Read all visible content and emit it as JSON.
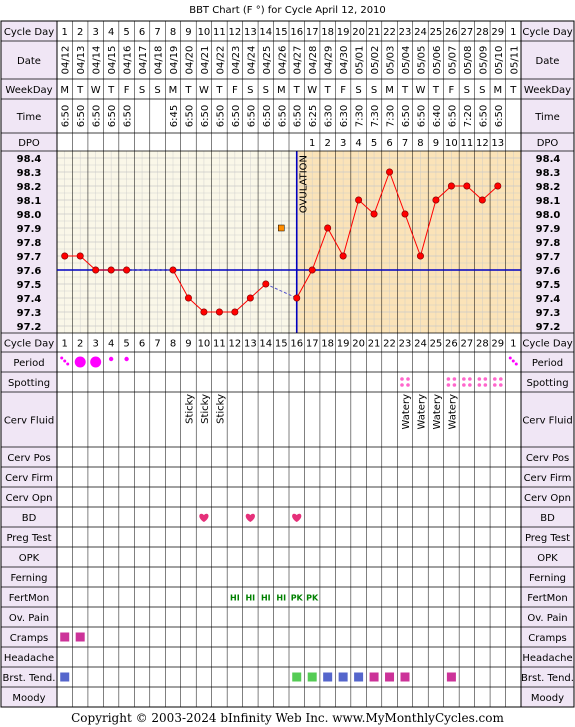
{
  "title": "BBT Chart (F °) for Cycle April 12, 2010",
  "footer": "Copyright © 2003-2024 bInfinity Web Inc.    www.MyMonthlyCycles.com",
  "colors": {
    "border": "#000000",
    "label_bg": "#f0e6f5",
    "temp_bg": "#faf7e8",
    "post_ov_bg": "#fbe3b8",
    "grid": "#c8c8c8",
    "line": "#ff0000",
    "point_fill": "#ff0000",
    "coverline": "#0000c0",
    "period": "#ff00ff",
    "spotting": "#ff66cc",
    "heart": "#e6307a",
    "fertmon": "#008000",
    "cramps": "#cc3399",
    "breast_blue": "#5566cc",
    "breast_green": "#55cc55",
    "breast_pink": "#cc3399",
    "open_marker": "#ff8c00"
  },
  "labels": {
    "cycle_day": "Cycle Day",
    "date": "Date",
    "weekday": "WeekDay",
    "time": "Time",
    "dpo": "DPO",
    "period": "Period",
    "spotting": "Spotting",
    "cerv_fluid": "Cerv Fluid",
    "cerv_pos": "Cerv Pos",
    "cerv_firm": "Cerv Firm",
    "cerv_opn": "Cerv Opn",
    "bd": "BD",
    "preg_test": "Preg Test",
    "opk": "OPK",
    "ferning": "Ferning",
    "fertmon": "FertMon",
    "ov_pain": "Ov. Pain",
    "cramps": "Cramps",
    "headache": "Headache",
    "brst_tend": "Brst. Tend.",
    "moody": "Moody",
    "ovulation": "OVULATION"
  },
  "chart_data": {
    "type": "line",
    "cycle_days": [
      "1",
      "2",
      "3",
      "4",
      "5",
      "6",
      "7",
      "8",
      "9",
      "10",
      "11",
      "12",
      "13",
      "14",
      "15",
      "16",
      "17",
      "18",
      "19",
      "20",
      "21",
      "22",
      "23",
      "24",
      "25",
      "26",
      "27",
      "28",
      "29",
      "1"
    ],
    "dates": [
      "04/12",
      "04/13",
      "04/14",
      "04/15",
      "04/16",
      "04/17",
      "04/18",
      "04/19",
      "04/20",
      "04/21",
      "04/22",
      "04/23",
      "04/24",
      "04/25",
      "04/26",
      "04/27",
      "04/28",
      "04/29",
      "04/30",
      "05/01",
      "05/02",
      "05/03",
      "05/04",
      "05/05",
      "05/06",
      "05/07",
      "05/08",
      "05/09",
      "05/10",
      "05/11"
    ],
    "weekdays": [
      "M",
      "T",
      "W",
      "T",
      "F",
      "S",
      "S",
      "M",
      "T",
      "W",
      "T",
      "F",
      "S",
      "S",
      "M",
      "T",
      "W",
      "T",
      "F",
      "S",
      "S",
      "M",
      "T",
      "W",
      "T",
      "F",
      "S",
      "S",
      "M",
      "T"
    ],
    "times": [
      "6:50",
      "6:50",
      "6:50",
      "6:50",
      "6:50",
      "",
      "",
      "6:45",
      "6:50",
      "6:50",
      "6:50",
      "6:50",
      "6:50",
      "6:50",
      "6:50",
      "6:50",
      "6:25",
      "6:30",
      "6:30",
      "7:30",
      "7:30",
      "7:30",
      "6:50",
      "6:50",
      "6:40",
      "6:50",
      "7:20",
      "6:50",
      "6:50",
      ""
    ],
    "dpo": [
      "",
      "",
      "",
      "",
      "",
      "",
      "",
      "",
      "",
      "",
      "",
      "",
      "",
      "",
      "",
      "",
      "1",
      "2",
      "3",
      "4",
      "5",
      "6",
      "7",
      "8",
      "9",
      "10",
      "11",
      "12",
      "13",
      ""
    ],
    "y_ticks": [
      "98.4",
      "98.3",
      "98.2",
      "98.1",
      "98.0",
      "97.9",
      "97.8",
      "97.7",
      "97.6",
      "97.5",
      "97.4",
      "97.3",
      "97.2"
    ],
    "ylim": [
      97.2,
      98.4
    ],
    "temps": [
      97.7,
      97.7,
      97.6,
      97.6,
      97.6,
      null,
      null,
      97.6,
      97.4,
      97.3,
      97.3,
      97.3,
      97.4,
      97.5,
      null,
      97.4,
      97.6,
      97.9,
      97.7,
      98.1,
      98.0,
      98.3,
      98.0,
      97.7,
      98.1,
      98.2,
      98.2,
      98.1,
      98.2,
      null
    ],
    "open_point": {
      "day_index": 14,
      "value": 97.9
    },
    "coverline": 97.6,
    "ovulation_day_index": 15,
    "period": [
      "small",
      "large",
      "large",
      "tiny",
      "tiny",
      "",
      "",
      "",
      "",
      "",
      "",
      "",
      "",
      "",
      "",
      "",
      "",
      "",
      "",
      "",
      "",
      "",
      "",
      "",
      "",
      "",
      "",
      "",
      "",
      "small"
    ],
    "spotting": [
      "",
      "",
      "",
      "",
      "",
      "",
      "",
      "",
      "",
      "",
      "",
      "",
      "",
      "",
      "",
      "",
      "",
      "",
      "",
      "",
      "",
      "",
      "x",
      "",
      "",
      "x",
      "x",
      "x",
      "x",
      ""
    ],
    "cerv_fluid": [
      "",
      "",
      "",
      "",
      "",
      "",
      "",
      "",
      "Sticky",
      "Sticky",
      "Sticky",
      "",
      "",
      "",
      "",
      "",
      "",
      "",
      "",
      "",
      "",
      "",
      "Watery",
      "Watery",
      "Watery",
      "Watery",
      "",
      "",
      "",
      ""
    ],
    "bd": [
      "",
      "",
      "",
      "",
      "",
      "",
      "",
      "",
      "",
      "x",
      "",
      "",
      "x",
      "",
      "",
      "x",
      "",
      "",
      "",
      "",
      "",
      "",
      "",
      "",
      "",
      "",
      "",
      "",
      "",
      ""
    ],
    "fertmon": [
      "",
      "",
      "",
      "",
      "",
      "",
      "",
      "",
      "",
      "",
      "",
      "HI",
      "HI",
      "HI",
      "HI",
      "PK",
      "PK",
      "",
      "",
      "",
      "",
      "",
      "",
      "",
      "",
      "",
      "",
      "",
      "",
      ""
    ],
    "cramps": [
      "x",
      "x",
      "",
      "",
      "",
      "",
      "",
      "",
      "",
      "",
      "",
      "",
      "",
      "",
      "",
      "",
      "",
      "",
      "",
      "",
      "",
      "",
      "",
      "",
      "",
      "",
      "",
      "",
      "",
      ""
    ],
    "breast_tend": [
      "blue",
      "",
      "",
      "",
      "",
      "",
      "",
      "",
      "",
      "",
      "",
      "",
      "",
      "",
      "",
      "green",
      "green",
      "blue",
      "blue",
      "blue",
      "pink",
      "pink",
      "pink",
      "",
      "",
      "pink",
      "",
      "",
      "",
      ""
    ]
  }
}
